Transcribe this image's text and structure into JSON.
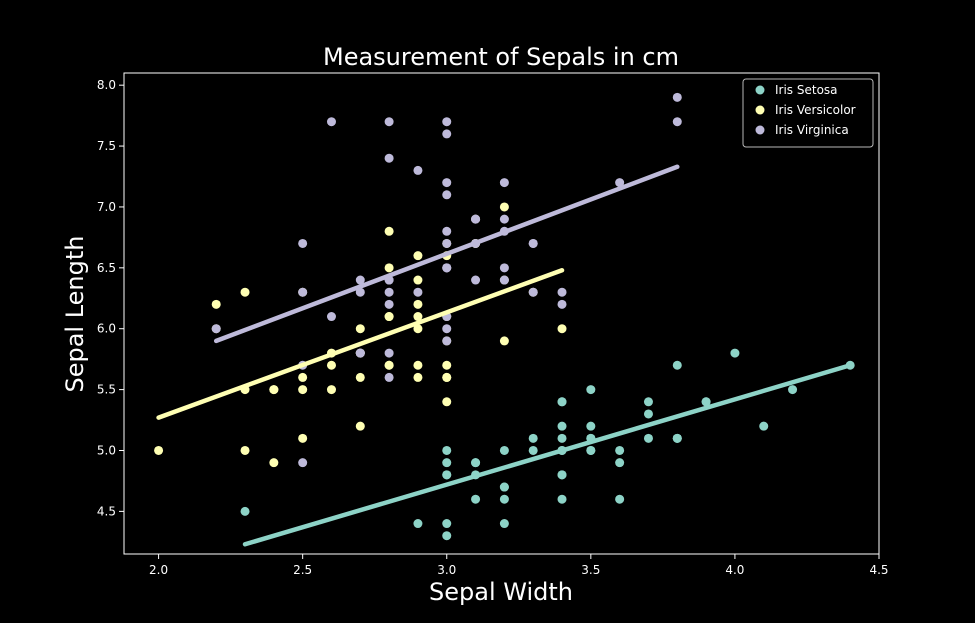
{
  "chart_data": {
    "type": "scatter",
    "title": "Measurement of Sepals in cm",
    "xlabel": "Sepal Width",
    "ylabel": "Sepal Length",
    "xlim": [
      1.88,
      4.5
    ],
    "ylim": [
      4.15,
      8.1
    ],
    "xticks": [
      "2.0",
      "2.5",
      "3.0",
      "3.5",
      "4.0",
      "4.5"
    ],
    "yticks": [
      "4.5",
      "5.0",
      "5.5",
      "6.0",
      "6.5",
      "7.0",
      "7.5",
      "8.0"
    ],
    "grid": false,
    "legend_position": "top-right",
    "series": [
      {
        "name": "Iris Setosa",
        "color": "#8dd3c7",
        "fit": [
          [
            2.3,
            4.23
          ],
          [
            4.4,
            5.7
          ]
        ],
        "points": [
          [
            3.5,
            5.1
          ],
          [
            3.0,
            4.9
          ],
          [
            3.2,
            4.7
          ],
          [
            3.1,
            4.6
          ],
          [
            3.6,
            5.0
          ],
          [
            3.9,
            5.4
          ],
          [
            3.4,
            4.6
          ],
          [
            3.4,
            5.0
          ],
          [
            2.9,
            4.4
          ],
          [
            3.1,
            4.9
          ],
          [
            3.7,
            5.4
          ],
          [
            3.4,
            4.8
          ],
          [
            3.0,
            4.8
          ],
          [
            3.0,
            4.3
          ],
          [
            4.0,
            5.8
          ],
          [
            4.4,
            5.7
          ],
          [
            3.9,
            5.4
          ],
          [
            3.5,
            5.1
          ],
          [
            3.8,
            5.7
          ],
          [
            3.8,
            5.1
          ],
          [
            3.4,
            5.4
          ],
          [
            3.7,
            5.1
          ],
          [
            3.6,
            4.6
          ],
          [
            3.3,
            5.1
          ],
          [
            3.4,
            4.8
          ],
          [
            3.0,
            5.0
          ],
          [
            3.4,
            5.0
          ],
          [
            3.5,
            5.2
          ],
          [
            3.4,
            5.2
          ],
          [
            3.2,
            4.7
          ],
          [
            3.1,
            4.8
          ],
          [
            3.4,
            5.4
          ],
          [
            4.1,
            5.2
          ],
          [
            4.2,
            5.5
          ],
          [
            3.1,
            4.9
          ],
          [
            3.2,
            5.0
          ],
          [
            3.5,
            5.5
          ],
          [
            3.6,
            4.9
          ],
          [
            3.0,
            4.4
          ],
          [
            3.4,
            5.1
          ],
          [
            3.5,
            5.0
          ],
          [
            2.3,
            4.5
          ],
          [
            3.2,
            4.4
          ],
          [
            3.5,
            5.0
          ],
          [
            3.8,
            5.1
          ],
          [
            3.0,
            4.8
          ],
          [
            3.8,
            5.1
          ],
          [
            3.2,
            4.6
          ],
          [
            3.7,
            5.3
          ],
          [
            3.3,
            5.0
          ]
        ]
      },
      {
        "name": "Iris Versicolor",
        "color": "#ffffb3",
        "fit": [
          [
            2.0,
            5.27
          ],
          [
            3.4,
            6.48
          ]
        ],
        "points": [
          [
            3.2,
            7.0
          ],
          [
            3.2,
            6.4
          ],
          [
            3.1,
            6.9
          ],
          [
            2.3,
            5.5
          ],
          [
            2.8,
            6.5
          ],
          [
            2.8,
            5.7
          ],
          [
            3.3,
            6.3
          ],
          [
            2.4,
            4.9
          ],
          [
            2.9,
            6.6
          ],
          [
            2.7,
            5.2
          ],
          [
            2.0,
            5.0
          ],
          [
            3.0,
            5.9
          ],
          [
            2.2,
            6.0
          ],
          [
            2.9,
            6.1
          ],
          [
            2.9,
            5.6
          ],
          [
            3.1,
            6.7
          ],
          [
            3.0,
            5.6
          ],
          [
            2.7,
            5.8
          ],
          [
            2.2,
            6.2
          ],
          [
            2.5,
            5.6
          ],
          [
            3.2,
            5.9
          ],
          [
            2.8,
            6.1
          ],
          [
            2.5,
            6.3
          ],
          [
            2.8,
            6.1
          ],
          [
            2.9,
            6.4
          ],
          [
            3.0,
            6.6
          ],
          [
            2.8,
            6.8
          ],
          [
            3.0,
            6.7
          ],
          [
            2.9,
            6.0
          ],
          [
            2.6,
            5.7
          ],
          [
            2.4,
            5.5
          ],
          [
            2.4,
            5.5
          ],
          [
            2.7,
            5.8
          ],
          [
            2.7,
            6.0
          ],
          [
            3.0,
            5.4
          ],
          [
            3.4,
            6.0
          ],
          [
            3.1,
            6.7
          ],
          [
            2.3,
            6.3
          ],
          [
            3.0,
            5.6
          ],
          [
            2.5,
            5.5
          ],
          [
            2.6,
            5.5
          ],
          [
            3.0,
            6.1
          ],
          [
            2.6,
            5.8
          ],
          [
            2.3,
            5.0
          ],
          [
            2.7,
            5.6
          ],
          [
            3.0,
            5.7
          ],
          [
            2.9,
            5.7
          ],
          [
            2.9,
            6.2
          ],
          [
            2.5,
            5.1
          ],
          [
            2.8,
            5.7
          ]
        ]
      },
      {
        "name": "Iris Virginica",
        "color": "#bebada",
        "fit": [
          [
            2.2,
            5.9
          ],
          [
            3.8,
            7.33
          ]
        ],
        "points": [
          [
            3.3,
            6.3
          ],
          [
            2.7,
            5.8
          ],
          [
            3.0,
            7.1
          ],
          [
            2.9,
            6.3
          ],
          [
            3.0,
            6.5
          ],
          [
            3.0,
            7.6
          ],
          [
            2.5,
            4.9
          ],
          [
            2.9,
            7.3
          ],
          [
            2.5,
            6.7
          ],
          [
            3.6,
            7.2
          ],
          [
            3.2,
            6.5
          ],
          [
            2.7,
            6.4
          ],
          [
            3.0,
            6.8
          ],
          [
            2.5,
            5.7
          ],
          [
            2.8,
            5.8
          ],
          [
            3.2,
            6.4
          ],
          [
            3.0,
            6.5
          ],
          [
            3.8,
            7.7
          ],
          [
            2.6,
            7.7
          ],
          [
            2.2,
            6.0
          ],
          [
            3.2,
            6.9
          ],
          [
            2.8,
            5.6
          ],
          [
            2.8,
            7.7
          ],
          [
            2.7,
            6.3
          ],
          [
            3.3,
            6.7
          ],
          [
            3.2,
            7.2
          ],
          [
            2.8,
            6.2
          ],
          [
            3.0,
            6.1
          ],
          [
            2.8,
            6.4
          ],
          [
            3.0,
            7.2
          ],
          [
            2.8,
            7.4
          ],
          [
            3.8,
            7.9
          ],
          [
            2.8,
            6.4
          ],
          [
            2.8,
            6.3
          ],
          [
            2.6,
            6.1
          ],
          [
            3.0,
            7.7
          ],
          [
            3.4,
            6.3
          ],
          [
            3.1,
            6.4
          ],
          [
            3.0,
            6.0
          ],
          [
            3.1,
            6.9
          ],
          [
            3.1,
            6.7
          ],
          [
            3.1,
            6.9
          ],
          [
            2.7,
            5.8
          ],
          [
            3.2,
            6.8
          ],
          [
            3.3,
            6.7
          ],
          [
            3.0,
            6.7
          ],
          [
            2.5,
            6.3
          ],
          [
            3.0,
            6.5
          ],
          [
            3.4,
            6.2
          ],
          [
            3.0,
            5.9
          ]
        ]
      }
    ]
  }
}
